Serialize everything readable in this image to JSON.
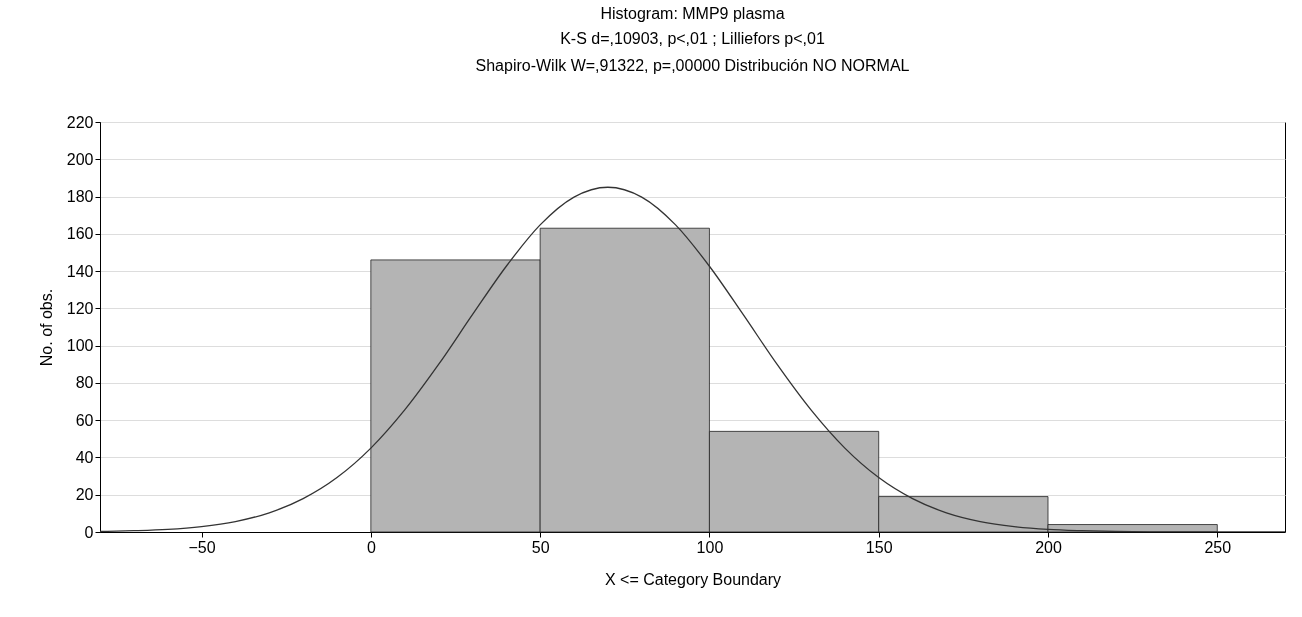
{
  "chart_data": {
    "type": "histogram",
    "title": "Histogram: MMP9 plasma",
    "subtitle": "K-S d=,10903, p<,01 ; Lilliefors p<,01\nShapiro-Wilk W=,91322, p=,00000 Distribución NO NORMAL",
    "xlabel": "X <= Category Boundary",
    "ylabel": "No. of obs.",
    "bins": [
      0,
      50,
      100,
      150,
      200,
      250
    ],
    "values": [
      146,
      163,
      54,
      19,
      4
    ],
    "color": "#b4b4b4",
    "series": [
      {
        "type": "line",
        "color": "#333333",
        "x": [
          -80,
          -70,
          -60,
          -50,
          -40,
          -30,
          -20,
          -10,
          0,
          10,
          20,
          30,
          40,
          50,
          60,
          70,
          80,
          90,
          100,
          110,
          120,
          130,
          140,
          150,
          160,
          170,
          180,
          190,
          200,
          210,
          220,
          230,
          240,
          250,
          260,
          270
        ],
        "values": [
          0.3,
          0.7,
          1.4,
          2.9,
          5.6,
          10.3,
          17.9,
          29.2,
          45,
          65.5,
          89.9,
          116.6,
          142.6,
          164.8,
          179.7,
          185,
          179.7,
          164.8,
          142.6,
          116.6,
          89.9,
          65.5,
          45,
          29.2,
          17.9,
          10.3,
          5.6,
          2.9,
          1.4,
          0.7,
          0.3,
          0.1,
          0,
          0,
          0,
          0
        ]
      }
    ],
    "xlim": [
      -80,
      270
    ],
    "xticks": [
      -50,
      0,
      50,
      100,
      150,
      200,
      250
    ],
    "ylim": [
      0,
      220
    ],
    "yticks": [
      0,
      20,
      40,
      60,
      80,
      100,
      120,
      140,
      160,
      180,
      200,
      220
    ],
    "grid": "y"
  }
}
